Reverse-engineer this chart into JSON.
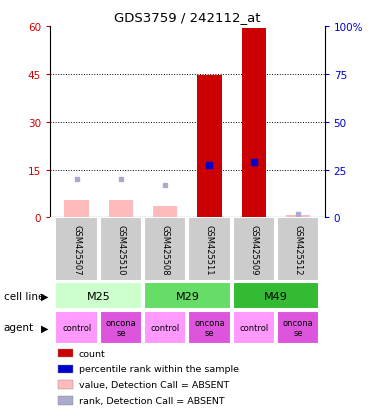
{
  "title": "GDS3759 / 242112_at",
  "samples": [
    "GSM425507",
    "GSM425510",
    "GSM425508",
    "GSM425511",
    "GSM425509",
    "GSM425512"
  ],
  "count_values": [
    0,
    0,
    0,
    44.5,
    59.5,
    0
  ],
  "rank_values": [
    0,
    0,
    0,
    16.5,
    17.5,
    0
  ],
  "count_absent": [
    5.5,
    5.5,
    3.5,
    0,
    0,
    0.8
  ],
  "rank_absent": [
    12.0,
    12.0,
    10.0,
    0,
    0,
    1.2
  ],
  "ylim_left": [
    0,
    60
  ],
  "ylim_right": [
    0,
    100
  ],
  "yticks_left": [
    0,
    15,
    30,
    45,
    60
  ],
  "ytick_labels_left": [
    "0",
    "15",
    "30",
    "45",
    "60"
  ],
  "yticks_right": [
    0,
    25,
    50,
    75,
    100
  ],
  "ytick_labels_right": [
    "0",
    "25",
    "50",
    "75",
    "100%"
  ],
  "cell_lines_info": [
    {
      "label": "M25",
      "start": 0,
      "end": 1,
      "color": "#ccffcc"
    },
    {
      "label": "M29",
      "start": 2,
      "end": 3,
      "color": "#66dd66"
    },
    {
      "label": "M49",
      "start": 4,
      "end": 5,
      "color": "#33bb33"
    }
  ],
  "agents": [
    "control",
    "onconase",
    "control",
    "onconase",
    "control",
    "onconase"
  ],
  "agent_colors": {
    "control": "#ff99ff",
    "onconase": "#dd55dd"
  },
  "bar_width": 0.55,
  "count_color": "#cc0000",
  "rank_color": "#0000cc",
  "count_absent_color": "#ffbbbb",
  "rank_absent_color": "#aaaacc",
  "legend_items": [
    {
      "color": "#cc0000",
      "label": "count"
    },
    {
      "color": "#0000cc",
      "label": "percentile rank within the sample"
    },
    {
      "color": "#ffbbbb",
      "label": "value, Detection Call = ABSENT"
    },
    {
      "color": "#aaaacc",
      "label": "rank, Detection Call = ABSENT"
    }
  ]
}
